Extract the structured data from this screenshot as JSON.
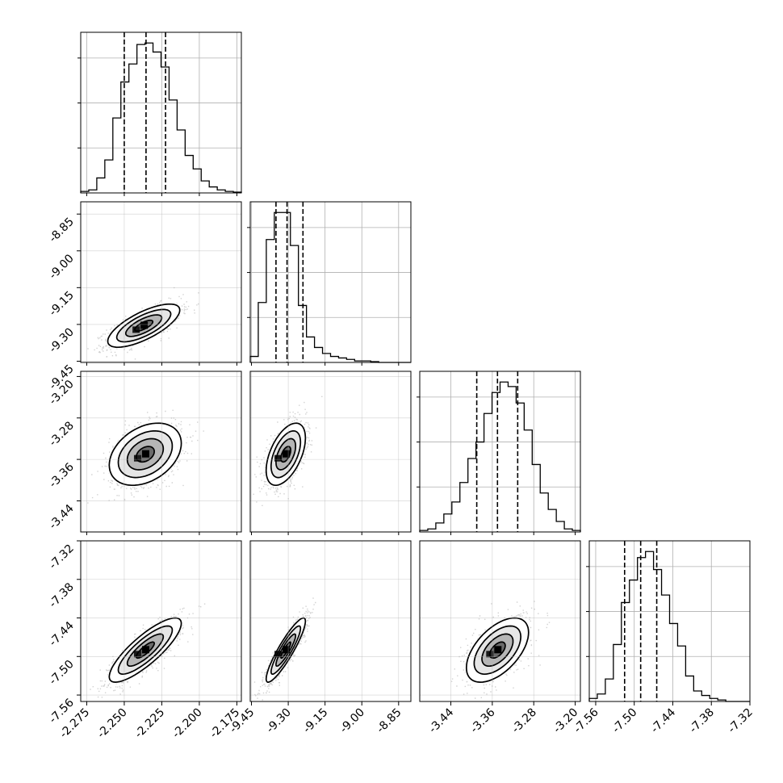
{
  "chart_data": {
    "type": "corner",
    "title": "",
    "parameters": [
      {
        "label": "",
        "ticks": [
          "-2.275",
          "-2.250",
          "-2.225",
          "-2.200",
          "-2.175"
        ],
        "tick_values": [
          -2.275,
          -2.25,
          -2.225,
          -2.2,
          -2.175
        ],
        "range": [
          -2.279,
          -2.172
        ],
        "quantiles": [
          -2.25,
          -2.2355,
          -2.2225
        ],
        "hist": [
          0.01,
          0.02,
          0.1,
          0.22,
          0.5,
          0.74,
          0.86,
          0.99,
          1.0,
          0.94,
          0.84,
          0.62,
          0.42,
          0.25,
          0.16,
          0.08,
          0.04,
          0.02,
          0.01,
          0.005
        ]
      },
      {
        "label": "",
        "ticks": [
          "-9.45",
          "-9.30",
          "-9.15",
          "-9.00",
          "-8.85"
        ],
        "tick_values": [
          -9.45,
          -9.3,
          -9.15,
          -9.0,
          -8.85
        ],
        "range": [
          -9.455,
          -8.8
        ],
        "quantiles": [
          -9.35,
          -9.305,
          -9.24
        ],
        "hist": [
          0.04,
          0.4,
          0.82,
          1.0,
          1.0,
          0.78,
          0.38,
          0.17,
          0.1,
          0.06,
          0.04,
          0.03,
          0.02,
          0.01,
          0.01,
          0.005,
          0.0,
          0.0,
          0.0,
          0.0
        ]
      },
      {
        "label": "",
        "ticks": [
          "-3.44",
          "-3.36",
          "-3.28",
          "-3.20"
        ],
        "tick_values": [
          -3.44,
          -3.36,
          -3.28,
          -3.2
        ],
        "range": [
          -3.5,
          -3.19
        ],
        "quantiles": [
          -3.39,
          -3.35,
          -3.311
        ],
        "hist": [
          0.01,
          0.02,
          0.06,
          0.12,
          0.2,
          0.33,
          0.49,
          0.6,
          0.79,
          0.93,
          1.0,
          0.97,
          0.86,
          0.68,
          0.45,
          0.26,
          0.15,
          0.07,
          0.02,
          0.01
        ]
      },
      {
        "label": "",
        "ticks": [
          "-7.56",
          "-7.50",
          "-7.44",
          "-7.38",
          "-7.32"
        ],
        "tick_values": [
          -7.56,
          -7.5,
          -7.44,
          -7.38,
          -7.32
        ],
        "range": [
          -7.57,
          -7.32
        ],
        "quantiles": [
          -7.515,
          -7.49,
          -7.465
        ],
        "hist": [
          0.02,
          0.05,
          0.15,
          0.38,
          0.66,
          0.81,
          0.96,
          1.0,
          0.88,
          0.71,
          0.52,
          0.37,
          0.17,
          0.07,
          0.04,
          0.02,
          0.01,
          0.0,
          0.0,
          0.0
        ]
      }
    ],
    "pairs": [
      {
        "row": 1,
        "col": 0,
        "mean": [
          -2.237,
          -9.305
        ],
        "sd": [
          0.012,
          0.044
        ],
        "rho": 0.72
      },
      {
        "row": 2,
        "col": 0,
        "mean": [
          -2.236,
          -3.35
        ],
        "sd": [
          0.012,
          0.03
        ],
        "rho": 0.35
      },
      {
        "row": 2,
        "col": 1,
        "mean": [
          -9.31,
          -3.35
        ],
        "sd": [
          0.04,
          0.03
        ],
        "rho": 0.52
      },
      {
        "row": 3,
        "col": 0,
        "mean": [
          -2.236,
          -7.49
        ],
        "sd": [
          0.012,
          0.025
        ],
        "rho": 0.83
      },
      {
        "row": 3,
        "col": 1,
        "mean": [
          -9.31,
          -7.49
        ],
        "sd": [
          0.04,
          0.025
        ],
        "rho": 0.9
      },
      {
        "row": 3,
        "col": 2,
        "mean": [
          -3.35,
          -7.49
        ],
        "sd": [
          0.03,
          0.025
        ],
        "rho": 0.55
      }
    ],
    "grid": true,
    "contour_levels": [
      0.5,
      1.0,
      1.5,
      2.0
    ],
    "colors": {
      "line": "#000000",
      "grid": "#b0b0b0",
      "points": "#000000",
      "density": "#000000"
    }
  }
}
